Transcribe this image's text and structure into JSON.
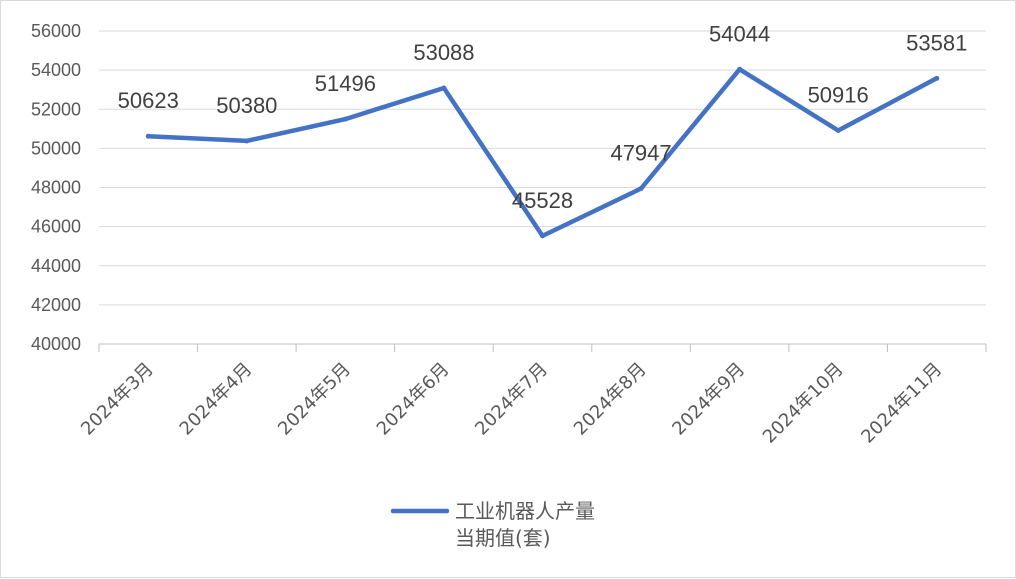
{
  "chart_data": {
    "type": "line",
    "categories": [
      "2024年3月",
      "2024年4月",
      "2024年5月",
      "2024年6月",
      "2024年7月",
      "2024年8月",
      "2024年9月",
      "2024年10月",
      "2024年11月"
    ],
    "series": [
      {
        "name_lines": [
          "工业机器人产量",
          "当期值(套)"
        ],
        "values": [
          50623,
          50380,
          51496,
          53088,
          45528,
          47947,
          54044,
          50916,
          53581
        ]
      }
    ],
    "ylim": [
      40000,
      56000
    ],
    "yticks": [
      40000,
      42000,
      44000,
      46000,
      48000,
      50000,
      52000,
      54000,
      56000
    ],
    "grid": true,
    "legend_position": "bottom",
    "series_color": "#4472C4",
    "title": "",
    "xlabel": "",
    "ylabel": ""
  }
}
